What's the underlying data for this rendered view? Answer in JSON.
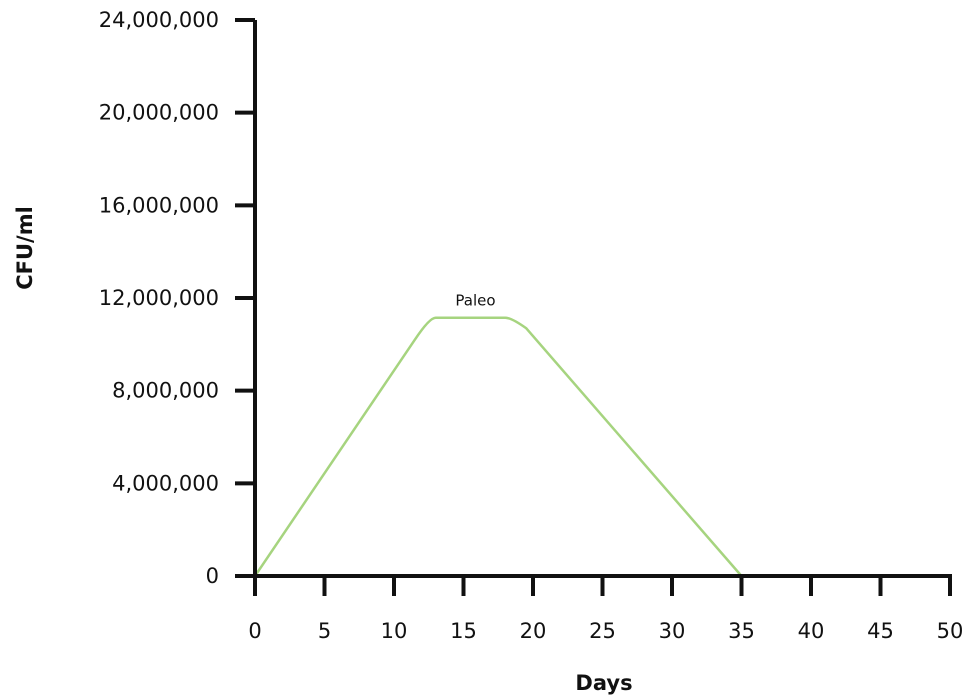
{
  "chart_data": {
    "type": "line",
    "title": "",
    "xlabel": "Days",
    "ylabel": "CFU/ml",
    "xlim": [
      0,
      50
    ],
    "ylim": [
      0,
      24000000
    ],
    "x_ticks": [
      0,
      5,
      10,
      15,
      20,
      25,
      30,
      35,
      40,
      45,
      50
    ],
    "x_tick_labels": [
      "0",
      "5",
      "10",
      "15",
      "20",
      "25",
      "30",
      "35",
      "40",
      "45",
      "50"
    ],
    "y_ticks": [
      0,
      4000000,
      8000000,
      12000000,
      16000000,
      20000000,
      24000000
    ],
    "y_tick_labels": [
      "0",
      "4,000,000",
      "8,000,000",
      "12,000,000",
      "16,000,000",
      "20,000,000",
      "24,000,000"
    ],
    "grid": false,
    "legend": "none",
    "series": [
      {
        "name": "Paleo",
        "color": "#a6d47f",
        "x": [
          0,
          11.5,
          13,
          18,
          19.5,
          35
        ],
        "y": [
          0,
          10200000,
          11150000,
          11150000,
          10700000,
          0
        ]
      }
    ]
  }
}
